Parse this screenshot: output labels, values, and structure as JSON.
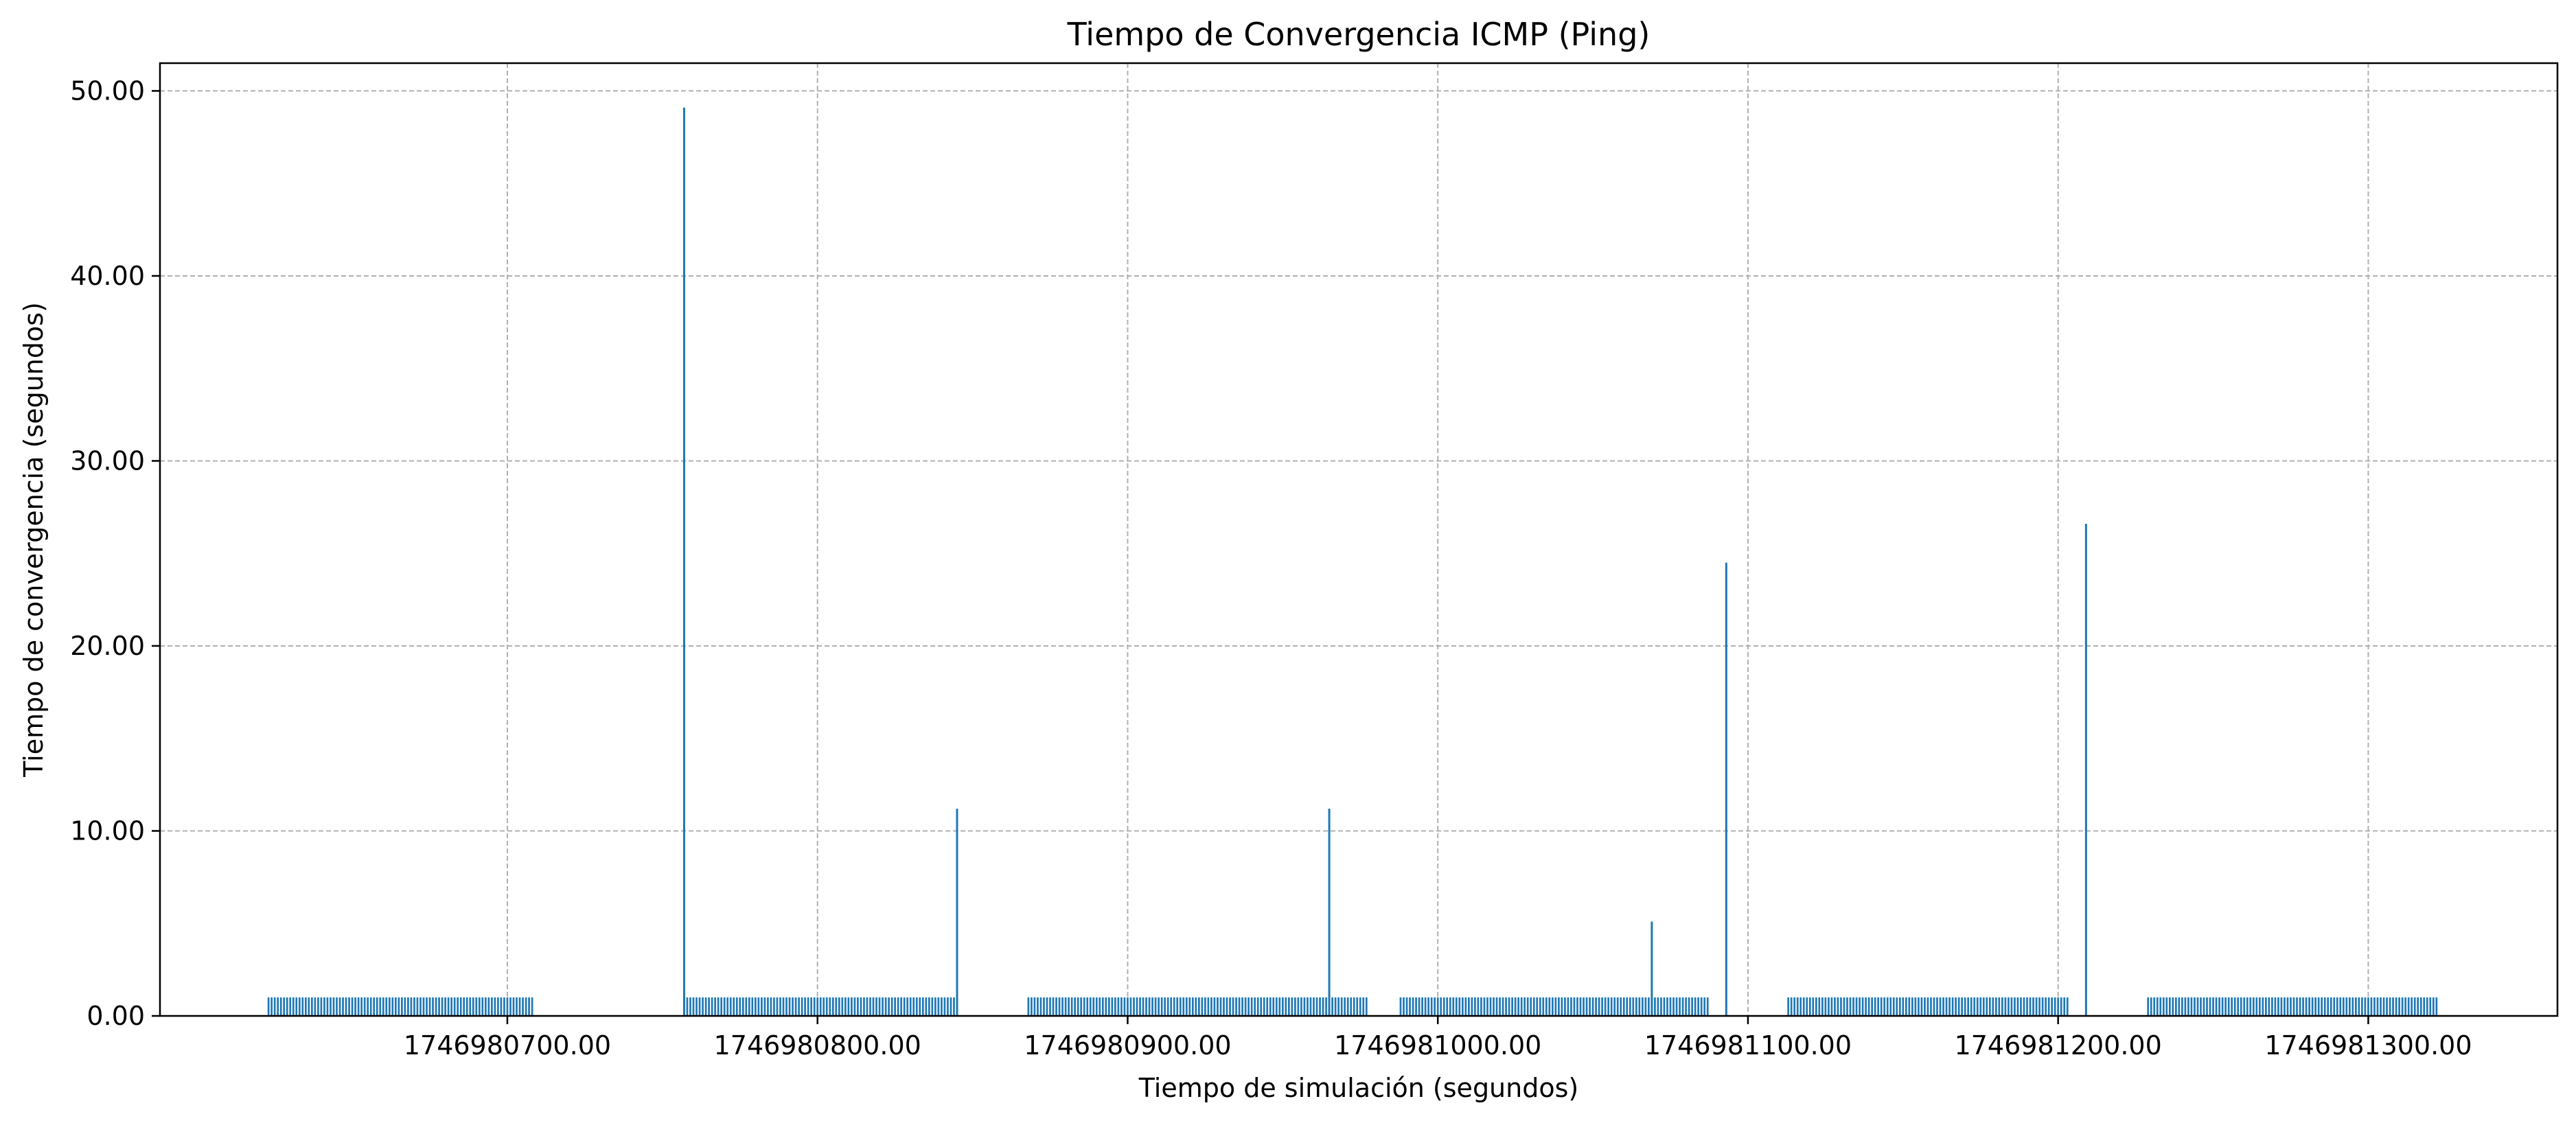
{
  "chart_data": {
    "type": "bar",
    "title": "Tiempo de Convergencia ICMP (Ping)",
    "xlabel": "Tiempo de simulación (segundos)",
    "ylabel": "Tiempo de convergencia (segundos)",
    "xlim": [
      1746980588,
      1746981361
    ],
    "ylim": [
      0,
      51.5
    ],
    "xticks": [
      1746980700,
      1746980800,
      1746980900,
      1746981000,
      1746981100,
      1746981200,
      1746981300
    ],
    "xtick_labels": [
      "1746980700.00",
      "1746980800.00",
      "1746980900.00",
      "1746981000.00",
      "1746981100.00",
      "1746981200.00",
      "1746981300.00"
    ],
    "yticks": [
      0,
      10,
      20,
      30,
      40,
      50
    ],
    "ytick_labels": [
      "0.00",
      "10.00",
      "20.00",
      "30.00",
      "40.00",
      "50.00"
    ],
    "grid": true,
    "bar_color": "#1f77b4",
    "baseline_value": 1.0,
    "bar_spacing": 1.0,
    "bar_width": 0.6,
    "segments": [
      {
        "start": 1746980623,
        "end": 1746980708
      },
      {
        "start": 1746980757,
        "end": 1746980845
      },
      {
        "start": 1746980868,
        "end": 1746980977
      },
      {
        "start": 1746980988,
        "end": 1746981087
      },
      {
        "start": 1746981113,
        "end": 1746981203
      },
      {
        "start": 1746981229,
        "end": 1746981322
      }
    ],
    "spikes": [
      {
        "x": 1746980757,
        "value": 49.1
      },
      {
        "x": 1746980845,
        "value": 11.2
      },
      {
        "x": 1746980965,
        "value": 11.2
      },
      {
        "x": 1746981069,
        "value": 5.1
      },
      {
        "x": 1746981093,
        "value": 24.5
      },
      {
        "x": 1746981209,
        "value": 26.6
      }
    ]
  }
}
